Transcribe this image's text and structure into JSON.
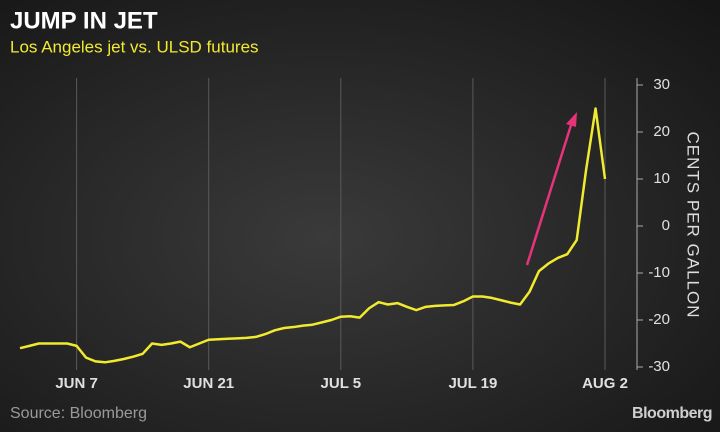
{
  "chart_data": {
    "type": "line",
    "title": "JUMP IN JET",
    "subtitle": "Los Angeles jet vs. ULSD futures",
    "y_label": "CENTS PER GALLON",
    "source": "Source: Bloomberg",
    "brand": "Bloomberg",
    "categories": [
      null,
      null,
      null,
      null,
      null,
      null,
      "JUN 7",
      null,
      null,
      null,
      null,
      null,
      null,
      null,
      null,
      null,
      null,
      null,
      null,
      null,
      "JUN 21",
      null,
      null,
      null,
      null,
      null,
      null,
      null,
      null,
      null,
      null,
      null,
      null,
      null,
      "JUL 5",
      null,
      null,
      null,
      null,
      null,
      null,
      null,
      null,
      null,
      null,
      null,
      null,
      null,
      "JUL 19",
      null,
      null,
      null,
      null,
      null,
      null,
      null,
      null,
      null,
      null,
      null,
      null,
      null,
      "AUG 2"
    ],
    "values": [
      -26,
      -25.5,
      -25,
      -25,
      -25,
      -25,
      -25.5,
      -28,
      -28.8,
      -29,
      -28.7,
      -28.3,
      -27.8,
      -27.2,
      -25,
      -25.3,
      -25,
      -24.6,
      -25.8,
      -25,
      -24.2,
      -24.1,
      -24,
      -23.9,
      -23.8,
      -23.6,
      -23,
      -22.2,
      -21.7,
      -21.5,
      -21.2,
      -21,
      -20.5,
      -20,
      -19.3,
      -19.2,
      -19.5,
      -17.5,
      -16.2,
      -16.7,
      -16.4,
      -17.2,
      -17.9,
      -17.2,
      -17,
      -16.9,
      -16.8,
      -16,
      -15,
      -15,
      -15.3,
      -15.8,
      -16.3,
      -16.7,
      -14,
      -9.6,
      -8,
      -6.8,
      -6,
      -3,
      12,
      25,
      10
    ],
    "color": "#f2ea2e",
    "ylim": [
      -30,
      30
    ],
    "yticks": [
      30,
      20,
      10,
      0,
      -10,
      -20,
      -30
    ],
    "grid": true
  }
}
